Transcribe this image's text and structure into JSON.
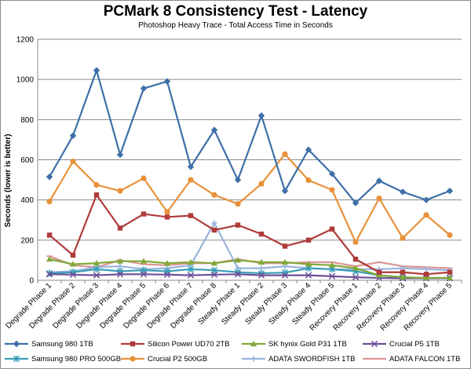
{
  "chart_data": {
    "type": "line",
    "title": "PCMark 8 Consistency Test - Latency",
    "subtitle": "Photoshop Heavy Trace - Total Access Time in Seconds",
    "xlabel": "",
    "ylabel": "Seconds (lower is better)",
    "ylim": [
      0,
      1200
    ],
    "yticks": [
      0,
      200,
      400,
      600,
      800,
      1000,
      1200
    ],
    "grid": true,
    "legend_position": "bottom",
    "categories": [
      "Degrade Phase 1",
      "Degrade Phase 2",
      "Degrade Phase 3",
      "Degrade Phase 4",
      "Degrade Phase 5",
      "Degrade Phase 6",
      "Degrade Phase 7",
      "Degrade Phase 8",
      "Steady Phase 1",
      "Steady Phase 2",
      "Steady Phase 3",
      "Steady Phase 4",
      "Steady Phase 5",
      "Recovery Phase 1",
      "Recovery Phase 2",
      "Recovery Phase 3",
      "Recovery Phase 4",
      "Recovery Phase 5"
    ],
    "series": [
      {
        "name": "Samsung 980 1TB",
        "color": "#3d6fa8",
        "marker": "diamond",
        "values": [
          515,
          720,
          1045,
          625,
          955,
          990,
          565,
          748,
          500,
          820,
          445,
          650,
          530,
          385,
          495,
          440,
          400,
          445
        ]
      },
      {
        "name": "Silicon Power UD70 2TB",
        "color": "#b03a3a",
        "marker": "square",
        "values": [
          225,
          125,
          425,
          260,
          330,
          315,
          322,
          250,
          275,
          230,
          170,
          200,
          255,
          105,
          40,
          40,
          30,
          40
        ]
      },
      {
        "name": "SK hynix Gold P31 1TB",
        "color": "#82a838",
        "marker": "triangle",
        "values": [
          105,
          80,
          85,
          95,
          95,
          85,
          90,
          85,
          100,
          90,
          90,
          80,
          75,
          60,
          25,
          15,
          12,
          12
        ]
      },
      {
        "name": "Crucial P5 1TB",
        "color": "#6b4f9a",
        "marker": "x",
        "values": [
          30,
          28,
          25,
          30,
          30,
          28,
          25,
          28,
          30,
          25,
          25,
          25,
          20,
          15,
          12,
          10,
          10,
          10
        ]
      },
      {
        "name": "Samsung 980 PRO 500GB",
        "color": "#3a9fb7",
        "marker": "asterisk",
        "values": [
          35,
          40,
          55,
          45,
          50,
          45,
          55,
          50,
          40,
          35,
          38,
          60,
          55,
          45,
          25,
          15,
          12,
          12
        ]
      },
      {
        "name": "Crucial P2 500GB",
        "color": "#e8913a",
        "marker": "circle",
        "values": [
          392,
          592,
          475,
          445,
          508,
          340,
          500,
          425,
          380,
          480,
          628,
          498,
          450,
          190,
          408,
          210,
          325,
          225
        ]
      },
      {
        "name": "ADATA SWORDFISH 1TB",
        "color": "#99b4de",
        "marker": "plus",
        "values": [
          40,
          45,
          65,
          70,
          55,
          60,
          75,
          285,
          60,
          60,
          70,
          60,
          55,
          55,
          55,
          60,
          55,
          50
        ]
      },
      {
        "name": "ADATA FALCON 1TB",
        "color": "#d99694",
        "marker": "dash",
        "values": [
          120,
          75,
          65,
          100,
          80,
          75,
          85,
          85,
          105,
          85,
          85,
          90,
          90,
          70,
          90,
          70,
          65,
          60
        ]
      }
    ]
  }
}
